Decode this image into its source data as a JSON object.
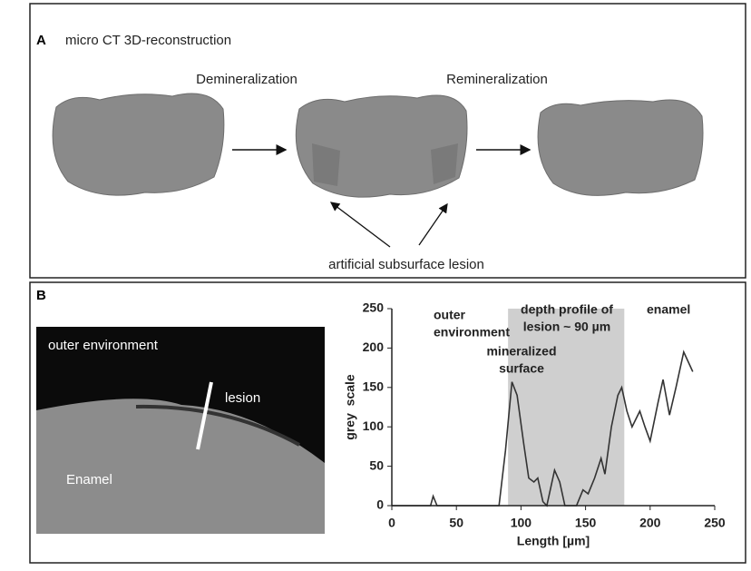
{
  "panel_a": {
    "label": "A",
    "title": "micro CT 3D-reconstruction",
    "steps": [
      "Demineralization",
      "Remineralization"
    ],
    "annotation": "artificial subsurface lesion"
  },
  "panel_b": {
    "label": "B",
    "image_labels": [
      "outer environment",
      "lesion",
      "Enamel"
    ]
  },
  "chart_data": {
    "type": "line",
    "xlabel": "Length [µm]",
    "ylabel": "grey  scale",
    "x": [
      0,
      30,
      32,
      35,
      83,
      88,
      93,
      97,
      102,
      106,
      110,
      113,
      117,
      120,
      126,
      130,
      134,
      143,
      148,
      152,
      157,
      162,
      165,
      170,
      175,
      178,
      182,
      186,
      192,
      196,
      200,
      206,
      210,
      215,
      220,
      226,
      233
    ],
    "values": [
      0,
      0,
      12,
      0,
      0,
      70,
      157,
      140,
      80,
      35,
      30,
      35,
      5,
      0,
      45,
      30,
      0,
      0,
      20,
      15,
      35,
      60,
      40,
      100,
      140,
      150,
      120,
      100,
      120,
      100,
      82,
      130,
      160,
      115,
      150,
      195,
      170
    ],
    "color": "#333333",
    "highlight": [
      90,
      180
    ],
    "highlight_color": "#cfcfcf",
    "xlim": [
      0,
      250
    ],
    "ylim": [
      0,
      250
    ],
    "xticks": [
      0,
      50,
      100,
      150,
      200,
      250
    ],
    "yticks": [
      0,
      50,
      100,
      150,
      200,
      250
    ],
    "annotations": [
      {
        "lines": [
          "outer",
          "environment"
        ]
      },
      {
        "lines": [
          "depth profile of",
          "lesion ~ 90 µm"
        ]
      },
      {
        "lines": [
          "mineralized",
          "surface"
        ]
      },
      {
        "lines": [
          "enamel"
        ]
      }
    ]
  }
}
